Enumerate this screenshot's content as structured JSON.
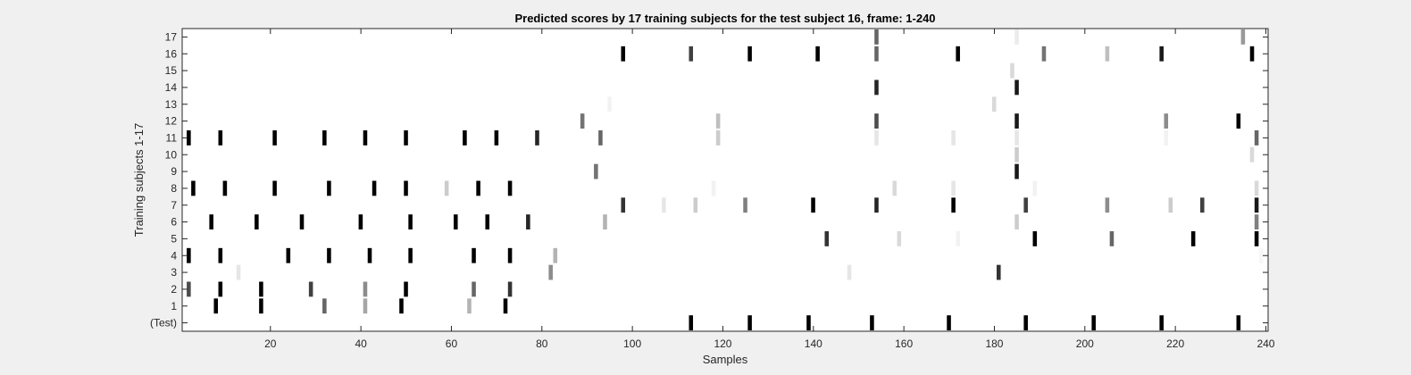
{
  "chart_data": {
    "type": "heatmap",
    "title": "Predicted scores by 17 training subjects for the test subject 16, frame: 1-240",
    "xlabel": "Samples",
    "ylabel": "Training subjects 1-17",
    "xlim": [
      1,
      240
    ],
    "x_ticks": [
      20,
      40,
      60,
      80,
      100,
      120,
      140,
      160,
      180,
      200,
      220,
      240
    ],
    "y_tick_labels": [
      "(Test)",
      "1",
      "2",
      "3",
      "4",
      "5",
      "6",
      "7",
      "8",
      "9",
      "10",
      "11",
      "12",
      "13",
      "14",
      "15",
      "16",
      "17"
    ],
    "colormap": "gray (white = 0, black = 1)",
    "grid": false,
    "rows": [
      {
        "label": "17",
        "cells": [
          [
            154,
            0.6
          ],
          [
            185,
            0.08
          ],
          [
            235,
            0.4
          ]
        ]
      },
      {
        "label": "16",
        "cells": [
          [
            98,
            1.0
          ],
          [
            113,
            0.75
          ],
          [
            126,
            1.0
          ],
          [
            141,
            1.0
          ],
          [
            154,
            0.6
          ],
          [
            172,
            1.0
          ],
          [
            191,
            0.55
          ],
          [
            205,
            0.25
          ],
          [
            217,
            0.9
          ],
          [
            237,
            1.0
          ]
        ]
      },
      {
        "label": "15",
        "cells": [
          [
            184,
            0.15
          ]
        ]
      },
      {
        "label": "14",
        "cells": [
          [
            154,
            0.85
          ],
          [
            185,
            0.9
          ]
        ]
      },
      {
        "label": "13",
        "cells": [
          [
            95,
            0.05
          ],
          [
            180,
            0.15
          ]
        ]
      },
      {
        "label": "12",
        "cells": [
          [
            89,
            0.55
          ],
          [
            119,
            0.25
          ],
          [
            154,
            0.7
          ],
          [
            185,
            0.9
          ],
          [
            218,
            0.45
          ],
          [
            234,
            1.0
          ]
        ]
      },
      {
        "label": "11",
        "cells": [
          [
            2,
            1.0
          ],
          [
            9,
            1.0
          ],
          [
            21,
            1.0
          ],
          [
            32,
            1.0
          ],
          [
            41,
            1.0
          ],
          [
            50,
            1.0
          ],
          [
            63,
            1.0
          ],
          [
            70,
            1.0
          ],
          [
            79,
            0.85
          ],
          [
            93,
            0.6
          ],
          [
            119,
            0.2
          ],
          [
            154,
            0.1
          ],
          [
            171,
            0.1
          ],
          [
            185,
            0.1
          ],
          [
            218,
            0.05
          ],
          [
            238,
            0.6
          ]
        ]
      },
      {
        "label": "10",
        "cells": [
          [
            185,
            0.2
          ],
          [
            237,
            0.15
          ]
        ]
      },
      {
        "label": "9",
        "cells": [
          [
            92,
            0.55
          ],
          [
            185,
            0.9
          ]
        ]
      },
      {
        "label": "8",
        "cells": [
          [
            3,
            1.0
          ],
          [
            10,
            1.0
          ],
          [
            21,
            1.0
          ],
          [
            33,
            1.0
          ],
          [
            43,
            1.0
          ],
          [
            50,
            1.0
          ],
          [
            59,
            0.2
          ],
          [
            66,
            1.0
          ],
          [
            73,
            1.0
          ],
          [
            118,
            0.05
          ],
          [
            158,
            0.15
          ],
          [
            171,
            0.1
          ],
          [
            189,
            0.05
          ],
          [
            238,
            0.15
          ]
        ]
      },
      {
        "label": "7",
        "cells": [
          [
            98,
            0.8
          ],
          [
            107,
            0.1
          ],
          [
            114,
            0.2
          ],
          [
            125,
            0.5
          ],
          [
            140,
            1.0
          ],
          [
            154,
            0.85
          ],
          [
            171,
            1.0
          ],
          [
            187,
            0.75
          ],
          [
            205,
            0.45
          ],
          [
            219,
            0.2
          ],
          [
            226,
            0.75
          ],
          [
            238,
            0.9
          ]
        ]
      },
      {
        "label": "6",
        "cells": [
          [
            7,
            1.0
          ],
          [
            17,
            1.0
          ],
          [
            27,
            1.0
          ],
          [
            40,
            1.0
          ],
          [
            51,
            1.0
          ],
          [
            61,
            1.0
          ],
          [
            68,
            1.0
          ],
          [
            77,
            0.85
          ],
          [
            94,
            0.3
          ],
          [
            185,
            0.2
          ],
          [
            238,
            0.5
          ]
        ]
      },
      {
        "label": "5",
        "cells": [
          [
            143,
            0.8
          ],
          [
            159,
            0.15
          ],
          [
            172,
            0.05
          ],
          [
            189,
            1.0
          ],
          [
            206,
            0.6
          ],
          [
            224,
            1.0
          ],
          [
            238,
            1.0
          ]
        ]
      },
      {
        "label": "4",
        "cells": [
          [
            2,
            1.0
          ],
          [
            9,
            1.0
          ],
          [
            24,
            1.0
          ],
          [
            33,
            1.0
          ],
          [
            42,
            1.0
          ],
          [
            51,
            1.0
          ],
          [
            65,
            1.0
          ],
          [
            73,
            1.0
          ],
          [
            83,
            0.3
          ],
          [
            239,
            0.03
          ]
        ]
      },
      {
        "label": "3",
        "cells": [
          [
            13,
            0.1
          ],
          [
            82,
            0.45
          ],
          [
            148,
            0.1
          ],
          [
            181,
            0.8
          ]
        ]
      },
      {
        "label": "2",
        "cells": [
          [
            2,
            0.7
          ],
          [
            9,
            1.0
          ],
          [
            18,
            1.0
          ],
          [
            29,
            0.75
          ],
          [
            41,
            0.45
          ],
          [
            50,
            1.0
          ],
          [
            65,
            0.6
          ],
          [
            73,
            0.8
          ]
        ]
      },
      {
        "label": "1",
        "cells": [
          [
            8,
            1.0
          ],
          [
            18,
            1.0
          ],
          [
            32,
            0.6
          ],
          [
            41,
            0.35
          ],
          [
            49,
            1.0
          ],
          [
            64,
            0.3
          ],
          [
            72,
            1.0
          ]
        ]
      },
      {
        "label": "(Test)",
        "cells": [
          [
            113,
            1.0
          ],
          [
            126,
            1.0
          ],
          [
            139,
            1.0
          ],
          [
            153,
            1.0
          ],
          [
            170,
            1.0
          ],
          [
            187,
            1.0
          ],
          [
            202,
            1.0
          ],
          [
            217,
            1.0
          ],
          [
            234,
            1.0
          ]
        ]
      }
    ]
  }
}
